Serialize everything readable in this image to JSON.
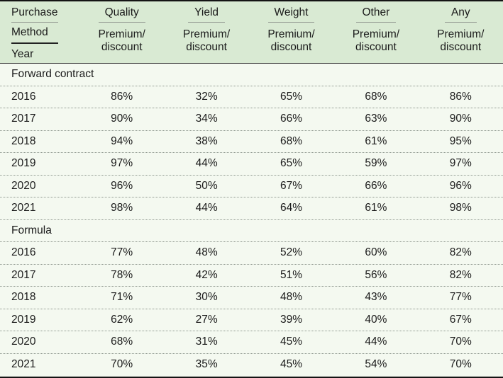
{
  "chart_data": {
    "type": "table",
    "stub_head": [
      "Purchase",
      "Method",
      "Year"
    ],
    "column_spanners": [
      "Quality",
      "Yield",
      "Weight",
      "Other",
      "Any"
    ],
    "column_subheader": [
      "Premium/",
      "discount"
    ],
    "groups": [
      {
        "label": "Forward contract",
        "rows": [
          {
            "year": "2016",
            "values": [
              "86%",
              "32%",
              "65%",
              "68%",
              "86%"
            ]
          },
          {
            "year": "2017",
            "values": [
              "90%",
              "34%",
              "66%",
              "63%",
              "90%"
            ]
          },
          {
            "year": "2018",
            "values": [
              "94%",
              "38%",
              "68%",
              "61%",
              "95%"
            ]
          },
          {
            "year": "2019",
            "values": [
              "97%",
              "44%",
              "65%",
              "59%",
              "97%"
            ]
          },
          {
            "year": "2020",
            "values": [
              "96%",
              "50%",
              "67%",
              "66%",
              "96%"
            ]
          },
          {
            "year": "2021",
            "values": [
              "98%",
              "44%",
              "64%",
              "61%",
              "98%"
            ]
          }
        ]
      },
      {
        "label": "Formula",
        "rows": [
          {
            "year": "2016",
            "values": [
              "77%",
              "48%",
              "52%",
              "60%",
              "82%"
            ]
          },
          {
            "year": "2017",
            "values": [
              "78%",
              "42%",
              "51%",
              "56%",
              "82%"
            ]
          },
          {
            "year": "2018",
            "values": [
              "71%",
              "30%",
              "48%",
              "43%",
              "77%"
            ]
          },
          {
            "year": "2019",
            "values": [
              "62%",
              "27%",
              "39%",
              "40%",
              "67%"
            ]
          },
          {
            "year": "2020",
            "values": [
              "68%",
              "31%",
              "45%",
              "44%",
              "70%"
            ]
          },
          {
            "year": "2021",
            "values": [
              "70%",
              "35%",
              "45%",
              "54%",
              "70%"
            ]
          }
        ]
      }
    ],
    "colors": {
      "header_bg": "#d9ead3",
      "body_bg": "#f4f9f0",
      "text": "#1b1b1b",
      "row_divider": "#8f988f",
      "spanner_underline": "#98a097",
      "strong_border": "#141414"
    }
  }
}
